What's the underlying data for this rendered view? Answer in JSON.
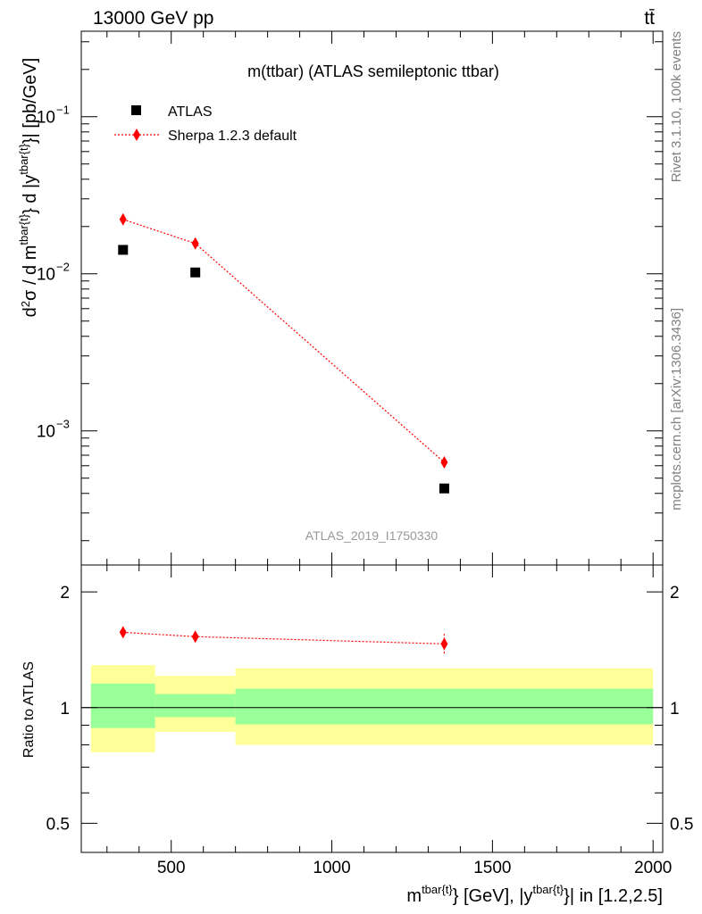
{
  "header": {
    "energy_label": "13000 GeV pp",
    "process_label": "tt̄"
  },
  "side_labels": {
    "rivet": "Rivet 3.1.10,  100k events",
    "mcplots": "mcplots.cern.ch [arXiv:1306.3436]"
  },
  "chart_data": [
    {
      "type": "scatter",
      "panel": "main",
      "title": "m(ttbar) (ATLAS semileptonic ttbar)",
      "analysis_label": "ATLAS_2019_I1750330",
      "ylabel": "d²σ / d m^{tbar{t}} d |y^{tbar{t}}| [pb/GeV]",
      "xlabel": "m^{tbar{t}} [GeV], |y^{tbar{t}}| in [1.2,2.5]",
      "yscale": "log",
      "xlim": [
        220,
        2030
      ],
      "ylim": [
        0.00014,
        0.35
      ],
      "x_ticks": [
        500,
        1000,
        1500,
        2000
      ],
      "y_ticks": [
        {
          "value": 0.001,
          "base": "10",
          "exp": "−3"
        },
        {
          "value": 0.01,
          "base": "10",
          "exp": "−2"
        },
        {
          "value": 0.1,
          "base": "10",
          "exp": "−1"
        }
      ],
      "legend_position": "top-left",
      "series": [
        {
          "name": "ATLAS",
          "marker": "square",
          "color": "#000000",
          "x": [
            350,
            575,
            1350
          ],
          "y": [
            0.0142,
            0.0102,
            0.00043
          ]
        },
        {
          "name": "Sherpa 1.2.3 default",
          "marker": "diamond",
          "line": "dotted",
          "color": "#ff0000",
          "x": [
            350,
            575,
            1350
          ],
          "y": [
            0.0222,
            0.0156,
            0.00063
          ]
        }
      ]
    },
    {
      "type": "scatter",
      "panel": "ratio",
      "ylabel": "Ratio to ATLAS",
      "yscale": "log",
      "ylim": [
        0.42,
        2.35
      ],
      "y_ticks": [
        {
          "value": 0.5,
          "label": "0.5"
        },
        {
          "value": 1,
          "label": "1"
        },
        {
          "value": 2,
          "label": "2"
        }
      ],
      "reference_line": 1,
      "bins": [
        {
          "xlo": 250,
          "xhi": 450,
          "inner": [
            0.885,
            1.155
          ],
          "outer": [
            0.765,
            1.29
          ]
        },
        {
          "xlo": 450,
          "xhi": 700,
          "inner": [
            0.945,
            1.085
          ],
          "outer": [
            0.865,
            1.21
          ]
        },
        {
          "xlo": 700,
          "xhi": 2000,
          "inner": [
            0.905,
            1.12
          ],
          "outer": [
            0.8,
            1.265
          ]
        }
      ],
      "band_colors": {
        "inner": "#99ff99",
        "outer": "#ffff99"
      },
      "series": [
        {
          "name": "Sherpa 1.2.3 default",
          "marker": "diamond",
          "line": "dotted",
          "color": "#ff0000",
          "x": [
            350,
            575,
            1350
          ],
          "y": [
            1.57,
            1.53,
            1.465
          ],
          "yerr": [
            0.04,
            0.04,
            0.09
          ]
        }
      ]
    }
  ]
}
